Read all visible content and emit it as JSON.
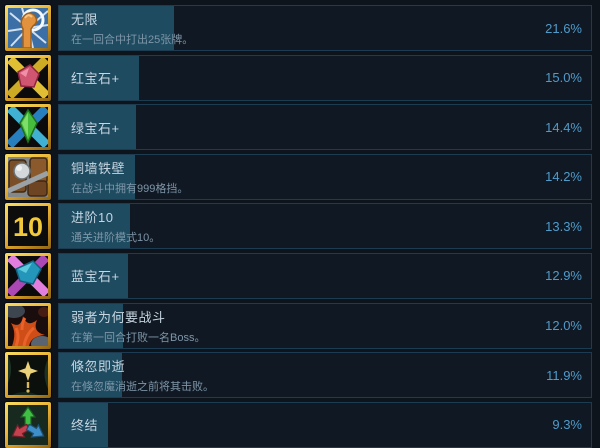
{
  "page": {
    "background_color": "#0d141c",
    "progress_fill_color": "#1e4b60",
    "percentage_text_color": "#4f9bca",
    "row_border_color": "#1e3c51"
  },
  "achievements": [
    {
      "title": "无限",
      "desc": "在一回合中打出25张牌。",
      "pct": "21.6%",
      "pct_value": 21.6,
      "icon": "infinity-icon"
    },
    {
      "title": "红宝石+",
      "desc": "",
      "pct": "15.0%",
      "pct_value": 15.0,
      "icon": "ruby-gem-icon"
    },
    {
      "title": "绿宝石+",
      "desc": "",
      "pct": "14.4%",
      "pct_value": 14.4,
      "icon": "emerald-gem-icon"
    },
    {
      "title": "铜墙铁壁",
      "desc": "在战斗中拥有999格挡。",
      "pct": "14.2%",
      "pct_value": 14.2,
      "icon": "barricade-shield-icon"
    },
    {
      "title": "进阶10",
      "desc": "通关进阶模式10。",
      "pct": "13.3%",
      "pct_value": 13.3,
      "icon": "ascension-10-icon"
    },
    {
      "title": "蓝宝石+",
      "desc": "",
      "pct": "12.9%",
      "pct_value": 12.9,
      "icon": "sapphire-gem-icon"
    },
    {
      "title": "弱者为何要战斗",
      "desc": "在第一回合打败一名Boss。",
      "pct": "12.0%",
      "pct_value": 12.0,
      "icon": "red-coral-icon"
    },
    {
      "title": "倏忽即逝",
      "desc": "在倏忽魔消逝之前将其击败。",
      "pct": "11.9%",
      "pct_value": 11.9,
      "icon": "transient-star-icon"
    },
    {
      "title": "终结",
      "desc": "",
      "pct": "9.3%",
      "pct_value": 9.3,
      "icon": "tri-arrow-icon"
    }
  ]
}
